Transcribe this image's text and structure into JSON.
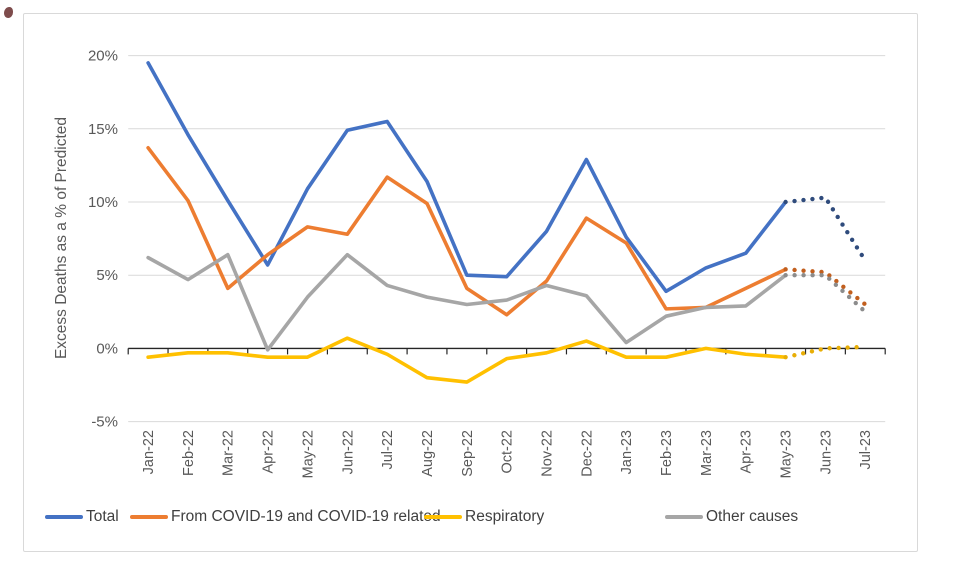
{
  "chart_data": {
    "type": "line",
    "title": "",
    "xlabel": "",
    "ylabel": "Excess Deaths as a % of Predicted",
    "ylim": [
      -5,
      20
    ],
    "grid": "horizontal",
    "legend_position": "bottom",
    "yticks": [
      {
        "value": 20,
        "label": "20%"
      },
      {
        "value": 15,
        "label": "15%"
      },
      {
        "value": 10,
        "label": "10%"
      },
      {
        "value": 5,
        "label": "5%"
      },
      {
        "value": 0,
        "label": "0%"
      },
      {
        "value": -5,
        "label": "-5%"
      }
    ],
    "gridline_values": [
      20,
      15,
      10,
      5,
      -5
    ],
    "categories": [
      "Jan-22",
      "Feb-22",
      "Mar-22",
      "Apr-22",
      "May-22",
      "Jun-22",
      "Jul-22",
      "Aug-22",
      "Sep-22",
      "Oct-22",
      "Nov-22",
      "Dec-22",
      "Jan-23",
      "Feb-23",
      "Mar-23",
      "Apr-23",
      "May-23",
      "Jun-23",
      "Jul-23"
    ],
    "forecast_start_index": 16,
    "forecast_note": "values after May-23 drawn as dotted projection",
    "series": [
      {
        "name": "Total",
        "color": "#4472c4",
        "forecast_color": "#2f4b7c",
        "values": [
          19.5,
          14.6,
          10.1,
          5.7,
          10.9,
          14.9,
          15.5,
          11.4,
          5.0,
          4.9,
          8.0,
          12.9,
          7.6,
          3.9,
          5.5,
          6.5,
          10.0,
          10.3,
          6.0
        ]
      },
      {
        "name": "From COVID-19 and COVID-19 related",
        "color": "#ed7d31",
        "forecast_color": "#c25f1e",
        "values": [
          13.7,
          10.1,
          4.1,
          6.4,
          8.3,
          7.8,
          11.7,
          9.9,
          4.1,
          2.3,
          4.6,
          8.9,
          7.2,
          2.7,
          2.8,
          4.1,
          5.4,
          5.2,
          3.0
        ]
      },
      {
        "name": "Respiratory",
        "color": "#ffc000",
        "forecast_color": "#e8ae06",
        "values": [
          -0.6,
          -0.3,
          -0.3,
          -0.6,
          -0.6,
          0.7,
          -0.4,
          -2.0,
          -2.3,
          -0.7,
          -0.3,
          0.5,
          -0.6,
          -0.6,
          0.0,
          -0.4,
          -0.6,
          0.0,
          0.1
        ]
      },
      {
        "name": "Other causes",
        "color": "#a6a6a6",
        "forecast_color": "#8c8c8c",
        "values": [
          6.2,
          4.7,
          6.4,
          -0.1,
          3.5,
          6.4,
          4.3,
          3.5,
          3.0,
          3.3,
          4.3,
          3.6,
          0.4,
          2.2,
          2.8,
          2.9,
          5.0,
          5.0,
          2.5
        ]
      }
    ],
    "axis_color": "#262626",
    "gridline_color": "#d9d9d9",
    "label_color": "#595959"
  }
}
